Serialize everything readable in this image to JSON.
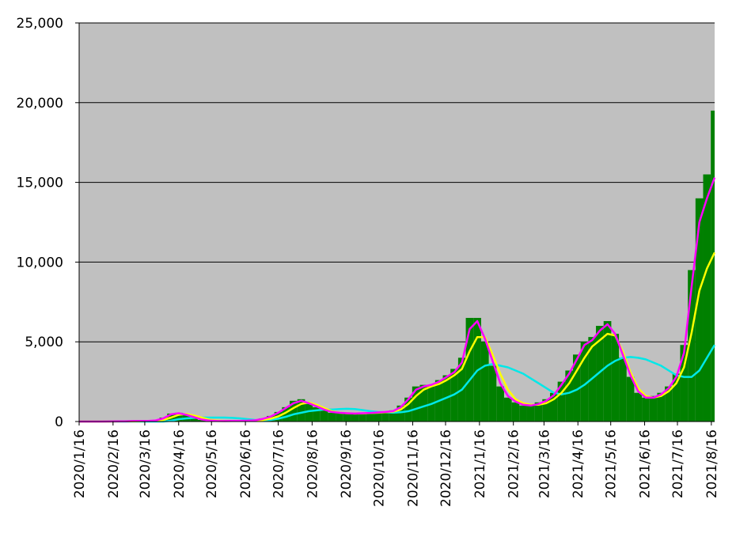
{
  "chart_data": {
    "type": "bar",
    "x": [
      "2020/1/16",
      "2020/1/23",
      "2020/1/30",
      "2020/2/6",
      "2020/2/13",
      "2020/2/20",
      "2020/2/27",
      "2020/3/5",
      "2020/3/12",
      "2020/3/19",
      "2020/3/26",
      "2020/4/2",
      "2020/4/9",
      "2020/4/16",
      "2020/4/23",
      "2020/4/30",
      "2020/5/7",
      "2020/5/14",
      "2020/5/21",
      "2020/5/28",
      "2020/6/4",
      "2020/6/11",
      "2020/6/18",
      "2020/6/25",
      "2020/7/2",
      "2020/7/9",
      "2020/7/16",
      "2020/7/23",
      "2020/7/30",
      "2020/8/6",
      "2020/8/13",
      "2020/8/20",
      "2020/8/27",
      "2020/9/3",
      "2020/9/10",
      "2020/9/17",
      "2020/9/24",
      "2020/10/1",
      "2020/10/8",
      "2020/10/15",
      "2020/10/22",
      "2020/10/29",
      "2020/11/5",
      "2020/11/12",
      "2020/11/19",
      "2020/11/26",
      "2020/12/3",
      "2020/12/10",
      "2020/12/17",
      "2020/12/24",
      "2020/12/31",
      "2021/1/7",
      "2021/1/14",
      "2021/1/21",
      "2021/1/28",
      "2021/2/4",
      "2021/2/11",
      "2021/2/18",
      "2021/2/25",
      "2021/3/4",
      "2021/3/11",
      "2021/3/18",
      "2021/3/25",
      "2021/4/1",
      "2021/4/8",
      "2021/4/15",
      "2021/4/22",
      "2021/4/29",
      "2021/5/6",
      "2021/5/13",
      "2021/5/20",
      "2021/5/27",
      "2021/6/3",
      "2021/6/10",
      "2021/6/17",
      "2021/6/24",
      "2021/7/1",
      "2021/7/8",
      "2021/7/15",
      "2021/7/22",
      "2021/7/29",
      "2021/8/5",
      "2021/8/12",
      "2021/8/19"
    ],
    "series": [
      {
        "type": "bar",
        "color": "#008000",
        "values": [
          0,
          0,
          0,
          0,
          10,
          15,
          20,
          40,
          50,
          40,
          100,
          250,
          500,
          550,
          400,
          250,
          100,
          50,
          30,
          30,
          40,
          50,
          60,
          100,
          200,
          350,
          600,
          900,
          1300,
          1400,
          1100,
          900,
          700,
          550,
          550,
          500,
          500,
          550,
          550,
          600,
          600,
          700,
          1000,
          1500,
          2200,
          2300,
          2300,
          2600,
          2900,
          3300,
          4000,
          6500,
          6500,
          5000,
          3500,
          2200,
          1500,
          1200,
          1000,
          1000,
          1200,
          1400,
          1800,
          2500,
          3200,
          4200,
          5000,
          5300,
          6000,
          6300,
          5500,
          4000,
          2800,
          1800,
          1500,
          1600,
          1800,
          2200,
          3000,
          4800,
          9500,
          14000,
          15500,
          19500
        ]
      },
      {
        "type": "line",
        "color": "#00e8e8",
        "values": [
          0,
          0,
          0,
          0,
          0,
          0,
          0,
          0,
          0,
          0,
          0,
          0,
          50,
          150,
          200,
          230,
          250,
          250,
          250,
          250,
          230,
          200,
          150,
          100,
          80,
          100,
          180,
          300,
          450,
          550,
          650,
          700,
          750,
          750,
          780,
          800,
          780,
          720,
          650,
          600,
          580,
          560,
          580,
          650,
          800,
          950,
          1100,
          1300,
          1500,
          1700,
          2000,
          2600,
          3200,
          3500,
          3600,
          3500,
          3400,
          3200,
          3000,
          2700,
          2400,
          2100,
          1800,
          1700,
          1800,
          2000,
          2300,
          2700,
          3100,
          3500,
          3800,
          4000,
          4050,
          4000,
          3900,
          3700,
          3500,
          3200,
          2900,
          2800,
          2800,
          3200,
          4000,
          4800
        ]
      },
      {
        "type": "line",
        "color": "#ffff00",
        "values": [
          0,
          0,
          0,
          0,
          0,
          5,
          10,
          15,
          25,
          35,
          40,
          100,
          250,
          420,
          470,
          380,
          250,
          120,
          60,
          40,
          35,
          38,
          45,
          55,
          90,
          180,
          320,
          560,
          850,
          1100,
          1200,
          1050,
          850,
          650,
          550,
          520,
          500,
          510,
          530,
          550,
          580,
          620,
          750,
          1100,
          1600,
          2000,
          2200,
          2350,
          2600,
          2900,
          3300,
          4400,
          5300,
          5300,
          4200,
          3000,
          2000,
          1400,
          1150,
          1050,
          1050,
          1150,
          1400,
          1800,
          2400,
          3200,
          4000,
          4700,
          5100,
          5500,
          5400,
          4400,
          3100,
          2100,
          1600,
          1500,
          1600,
          1900,
          2400,
          3400,
          5600,
          8200,
          9600,
          10600
        ]
      },
      {
        "type": "line",
        "color": "#ff00ff",
        "values": [
          0,
          0,
          0,
          0,
          5,
          10,
          15,
          30,
          40,
          40,
          70,
          200,
          450,
          520,
          420,
          280,
          130,
          60,
          35,
          30,
          35,
          45,
          55,
          80,
          170,
          310,
          550,
          850,
          1150,
          1300,
          1150,
          950,
          750,
          600,
          550,
          520,
          500,
          520,
          540,
          570,
          600,
          650,
          900,
          1400,
          2000,
          2200,
          2300,
          2500,
          2800,
          3100,
          3700,
          5800,
          6300,
          5200,
          3800,
          2400,
          1600,
          1250,
          1050,
          1000,
          1100,
          1300,
          1650,
          2300,
          3000,
          3900,
          4800,
          5100,
          5700,
          6100,
          5500,
          4200,
          2900,
          1900,
          1500,
          1500,
          1700,
          2100,
          2800,
          4300,
          8500,
          12500,
          14000,
          15300
        ]
      }
    ],
    "xlim": [
      "2020/1/16",
      "2021/8/19"
    ],
    "xticks": [
      "2020/1/16",
      "2020/2/16",
      "2020/3/16",
      "2020/4/16",
      "2020/5/16",
      "2020/6/16",
      "2020/7/16",
      "2020/8/16",
      "2020/9/16",
      "2020/10/16",
      "2020/11/16",
      "2020/12/16",
      "2021/1/16",
      "2021/2/16",
      "2021/3/16",
      "2021/4/16",
      "2021/5/16",
      "2021/6/16",
      "2021/7/16",
      "2021/8/16"
    ],
    "ylim": [
      0,
      25000
    ],
    "yticks": [
      0,
      {
        "value": 5000,
        "label": "5,000"
      },
      {
        "value": 10000,
        "label": "10,000"
      },
      {
        "value": 15000,
        "label": "15,000"
      },
      {
        "value": 20000,
        "label": "20,000"
      },
      {
        "value": 25000,
        "label": "25,000"
      }
    ],
    "grid": true,
    "background": "#c0c0c0"
  }
}
